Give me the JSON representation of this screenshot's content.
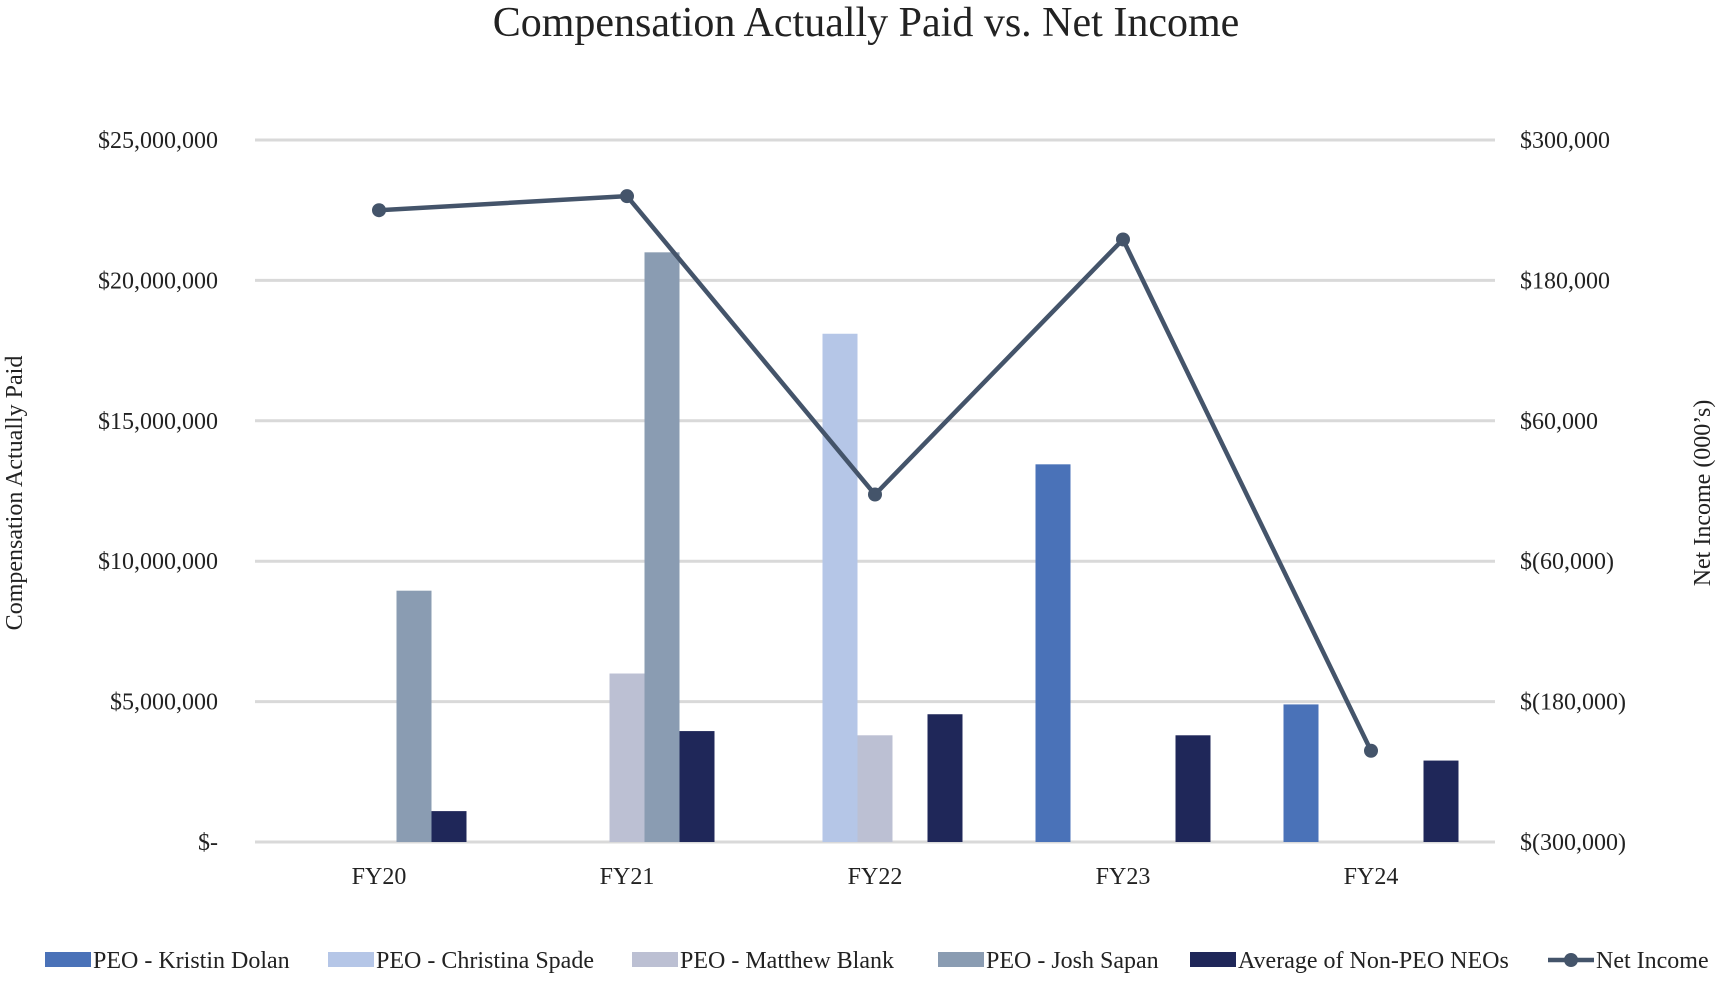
{
  "chart_data": {
    "type": "bar",
    "title": "Compensation Actually Paid vs. Net Income",
    "ylabel": "Compensation Actually Paid",
    "y2label": "Net Income (000’s)",
    "xlabel": "",
    "categories": [
      "FY20",
      "FY21",
      "FY22",
      "FY23",
      "FY24"
    ],
    "ylim": [
      0,
      25000000
    ],
    "y_ticks": [
      0,
      5000000,
      10000000,
      15000000,
      20000000,
      25000000
    ],
    "y_tick_labels": [
      "$-",
      "$5,000,000",
      "$10,000,000",
      "$15,000,000",
      "$20,000,000",
      "$25,000,000"
    ],
    "y2lim": [
      -300000,
      300000
    ],
    "y2_ticks": [
      -300000,
      -180000,
      -60000,
      60000,
      180000,
      300000
    ],
    "y2_tick_labels": [
      "$(300,000)",
      "$(180,000)",
      "$(60,000)",
      "$60,000",
      "$180,000",
      "$300,000"
    ],
    "grid": true,
    "legend_position": "bottom",
    "series": [
      {
        "name": "PEO - Kristin Dolan",
        "kind": "bar",
        "color": "#4A72B8",
        "values": [
          null,
          null,
          null,
          13450000,
          4900000
        ]
      },
      {
        "name": "PEO - Christina Spade",
        "kind": "bar",
        "color": "#B5C6E7",
        "values": [
          null,
          null,
          18100000,
          null,
          null
        ]
      },
      {
        "name": "PEO - Matthew Blank",
        "kind": "bar",
        "color": "#BCC0D3",
        "values": [
          null,
          6000000,
          3800000,
          null,
          null
        ]
      },
      {
        "name": "PEO - Josh Sapan",
        "kind": "bar",
        "color": "#8A9CB2",
        "values": [
          8950000,
          21000000,
          null,
          null,
          null
        ]
      },
      {
        "name": "Average of Non-PEO NEOs",
        "kind": "bar",
        "color": "#1F2759",
        "values": [
          1100000,
          3950000,
          4550000,
          3800000,
          2900000
        ]
      },
      {
        "name": "Net Income",
        "kind": "line",
        "axis": "right",
        "color": "#44546A",
        "values": [
          240000,
          252000,
          -3000,
          215000,
          -222000
        ]
      }
    ]
  }
}
